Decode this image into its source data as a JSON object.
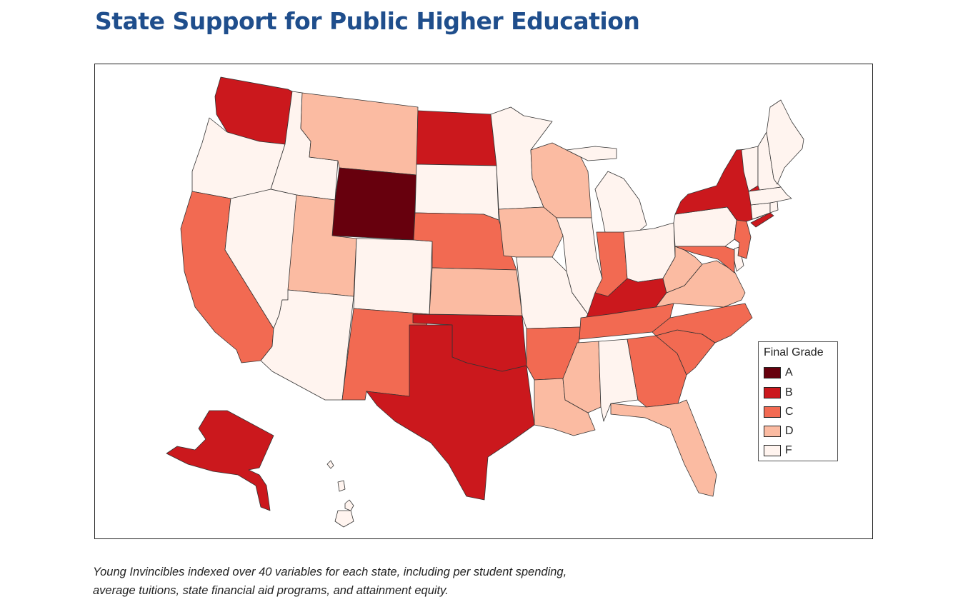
{
  "title": "State Support for Public Higher Education",
  "legend": {
    "title": "Final Grade",
    "items": [
      {
        "grade": "A",
        "color": "#67000d"
      },
      {
        "grade": "B",
        "color": "#cb181d"
      },
      {
        "grade": "C",
        "color": "#f26a52"
      },
      {
        "grade": "D",
        "color": "#fbbba2"
      },
      {
        "grade": "F",
        "color": "#fff4ef"
      }
    ]
  },
  "state_grades": {
    "WA": "B",
    "OR": "F",
    "CA": "C",
    "ID": "F",
    "NV": "F",
    "MT": "D",
    "WY": "A",
    "UT": "D",
    "AZ": "F",
    "CO": "F",
    "NM": "C",
    "ND": "B",
    "SD": "F",
    "NE": "C",
    "KS": "D",
    "OK": "B",
    "TX": "B",
    "MN": "F",
    "IA": "D",
    "MO": "F",
    "AR": "C",
    "LA": "D",
    "WI": "D",
    "IL": "F",
    "MI": "F",
    "IN": "C",
    "OH": "F",
    "KY": "B",
    "TN": "C",
    "MS": "D",
    "AL": "F",
    "GA": "C",
    "FL": "D",
    "SC": "C",
    "NC": "C",
    "VA": "D",
    "WV": "D",
    "MD": "C",
    "DE": "F",
    "NJ": "C",
    "PA": "F",
    "NY": "B",
    "CT": "F",
    "RI": "F",
    "MA": "F",
    "VT": "F",
    "NH": "F",
    "ME": "F",
    "AK": "B",
    "HI": "F"
  },
  "caption": {
    "line1": "Young Invincibles indexed over 40 variables for each state, including per student spending,",
    "line2": "average tuitions, state financial aid programs, and attainment equity."
  }
}
